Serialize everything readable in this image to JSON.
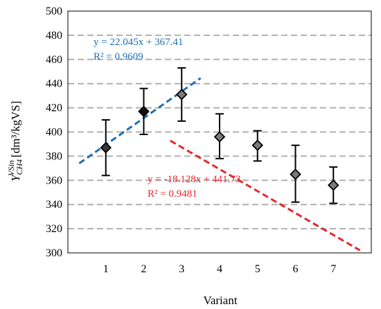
{
  "chart_data": {
    "type": "scatter",
    "title": "",
    "xlabel": "Variant",
    "ylabel": {
      "base": "Y",
      "subscript": "CH4",
      "superscript": "VSin",
      "units": "[dm³/kgVS]"
    },
    "xlim": [
      0,
      8
    ],
    "ylim": [
      300,
      500
    ],
    "x_ticks": [
      "1",
      "2",
      "3",
      "4",
      "5",
      "6",
      "7"
    ],
    "y_ticks": [
      "300",
      "320",
      "340",
      "360",
      "380",
      "400",
      "420",
      "440",
      "460",
      "480",
      "500"
    ],
    "grid": "horizontal dashed",
    "series": [
      {
        "x": [
          1,
          2,
          3,
          4,
          5,
          6,
          7
        ],
        "y": [
          387,
          417,
          431,
          396,
          389,
          365,
          356
        ],
        "error_low": [
          364,
          398,
          409,
          378,
          376,
          342,
          341
        ],
        "error_high": [
          410,
          436,
          453,
          415,
          401,
          389,
          371
        ],
        "marker": "diamond",
        "marker_fill": [
          "#3a3a3a",
          "#111111",
          "#7a7a7a",
          "#7a7a7a",
          "#7a7a7a",
          "#7a7a7a",
          "#7a7a7a"
        ]
      }
    ],
    "trendlines": [
      {
        "equation": "y = 22.045x + 367.41",
        "r2_label": "R² = 0.9609",
        "slope": 22.045,
        "intercept": 367.41,
        "x_range": [
          0.3,
          3.5
        ],
        "color": "#1f6fb8"
      },
      {
        "equation": "y = -18.128x + 441.73",
        "r2_label": "R² = 0.9481",
        "slope": -18.128,
        "intercept": 441.73,
        "x_range": [
          2.7,
          7.7
        ],
        "color": "#e8252a"
      }
    ]
  }
}
